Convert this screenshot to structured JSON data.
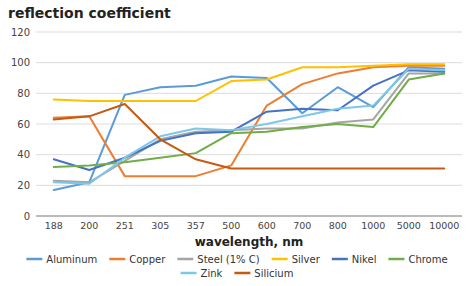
{
  "chart_data": {
    "type": "line",
    "title": "reflection coefficient",
    "x_label": "wavelength, nm",
    "categories": [
      "188",
      "200",
      "251",
      "305",
      "357",
      "500",
      "600",
      "700",
      "800",
      "1000",
      "5000",
      "10000"
    ],
    "series": [
      {
        "name": "Aluminum",
        "color": "#5b9bd5",
        "values": [
          17,
          22,
          79,
          84,
          85,
          91,
          90,
          67,
          84,
          71,
          97,
          96
        ]
      },
      {
        "name": "Copper",
        "color": "#ed7d31",
        "values": [
          64,
          65,
          26,
          26,
          26,
          33,
          72,
          86,
          93,
          97,
          98,
          98
        ]
      },
      {
        "name": "Steel (1% C)",
        "color": "#a5a5a5",
        "values": [
          23,
          22,
          36,
          50,
          55,
          56,
          57,
          57,
          61,
          63,
          93,
          93
        ]
      },
      {
        "name": "Silver",
        "color": "#ffc000",
        "values": [
          76,
          75,
          75,
          75,
          75,
          88,
          89,
          97,
          97,
          98,
          99,
          99
        ]
      },
      {
        "name": "Nikel",
        "color": "#4472c4",
        "values": [
          37,
          30,
          38,
          49,
          54,
          55,
          68,
          70,
          69,
          85,
          95,
          94
        ]
      },
      {
        "name": "Chrome",
        "color": "#70ad47",
        "values": [
          32,
          33,
          35,
          38,
          41,
          54,
          55,
          58,
          60,
          58,
          89,
          93
        ]
      },
      {
        "name": "Zink",
        "color": "#7dc7e8",
        "values": [
          22,
          21,
          38,
          52,
          57,
          56,
          60,
          65,
          70,
          72,
          96,
          95
        ]
      },
      {
        "name": "Silicium",
        "color": "#c55a11",
        "values": [
          63,
          65,
          73,
          50,
          37,
          31,
          31,
          31,
          31,
          31,
          31,
          31
        ]
      }
    ],
    "ylim": [
      0,
      120
    ],
    "yticks": [
      0,
      20,
      40,
      60,
      80,
      100,
      120
    ],
    "grid": true,
    "legend": "bottom"
  }
}
